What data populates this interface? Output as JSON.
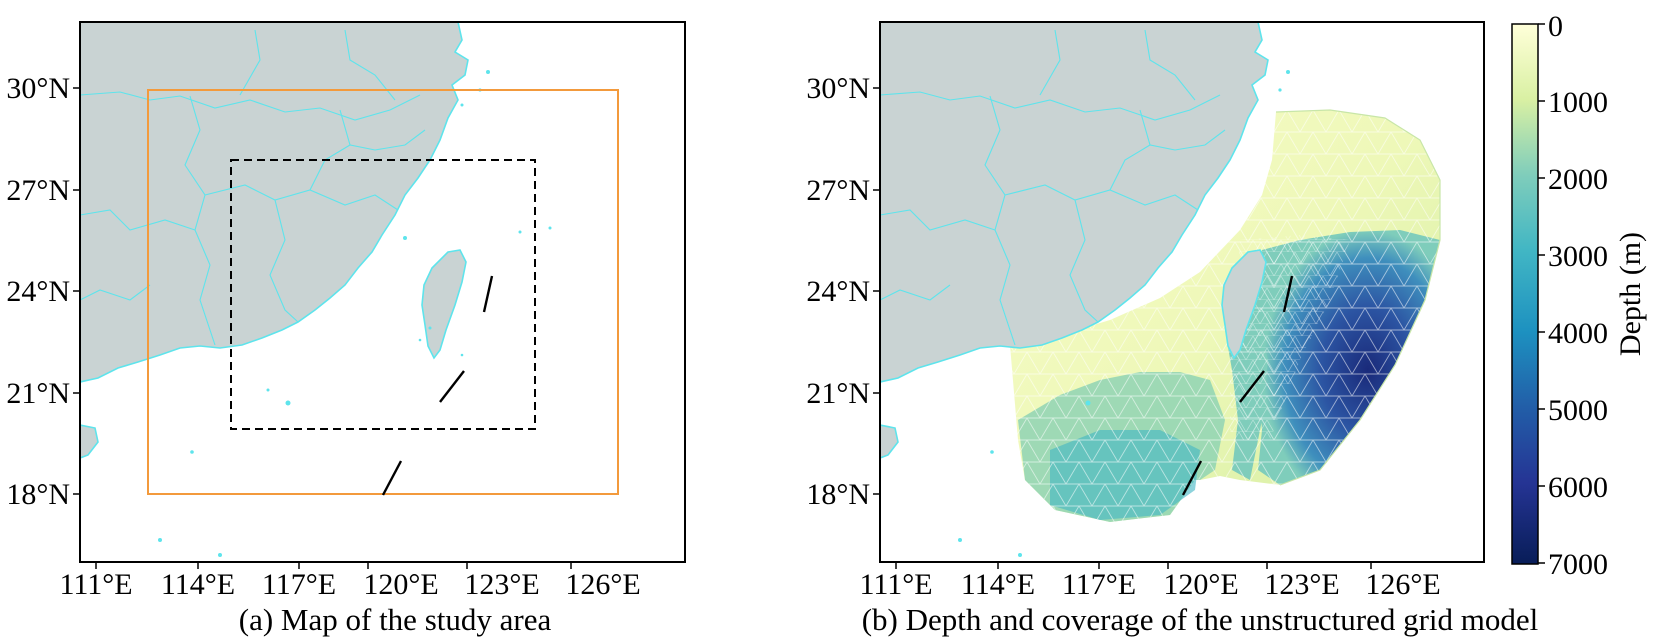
{
  "panel_a": {
    "caption": "(a) Map of the study area",
    "x_ticks": [
      "111°E",
      "114°E",
      "117°E",
      "120°E",
      "123°E",
      "126°E"
    ],
    "y_ticks": [
      "30°N",
      "27°N",
      "24°N",
      "21°N",
      "18°N"
    ],
    "outer_box_color": "#f39a3c",
    "inner_box_style": "dashed black"
  },
  "panel_b": {
    "caption": "(b) Depth and coverage of the unstructured grid model",
    "x_ticks": [
      "111°E",
      "114°E",
      "117°E",
      "120°E",
      "123°E",
      "126°E"
    ],
    "y_ticks": [
      "30°N",
      "27°N",
      "24°N",
      "21°N",
      "18°N"
    ]
  },
  "colorbar": {
    "label": "Depth (m)",
    "ticks": [
      "0",
      "1000",
      "2000",
      "3000",
      "4000",
      "5000",
      "6000",
      "7000"
    ],
    "colormap": "YlGnBu",
    "range": [
      0,
      7000
    ]
  },
  "colors": {
    "land": "#c9d3d3",
    "coastline": "#5ee4ec",
    "sea": "#ffffff",
    "fault_lines": "#000000"
  }
}
